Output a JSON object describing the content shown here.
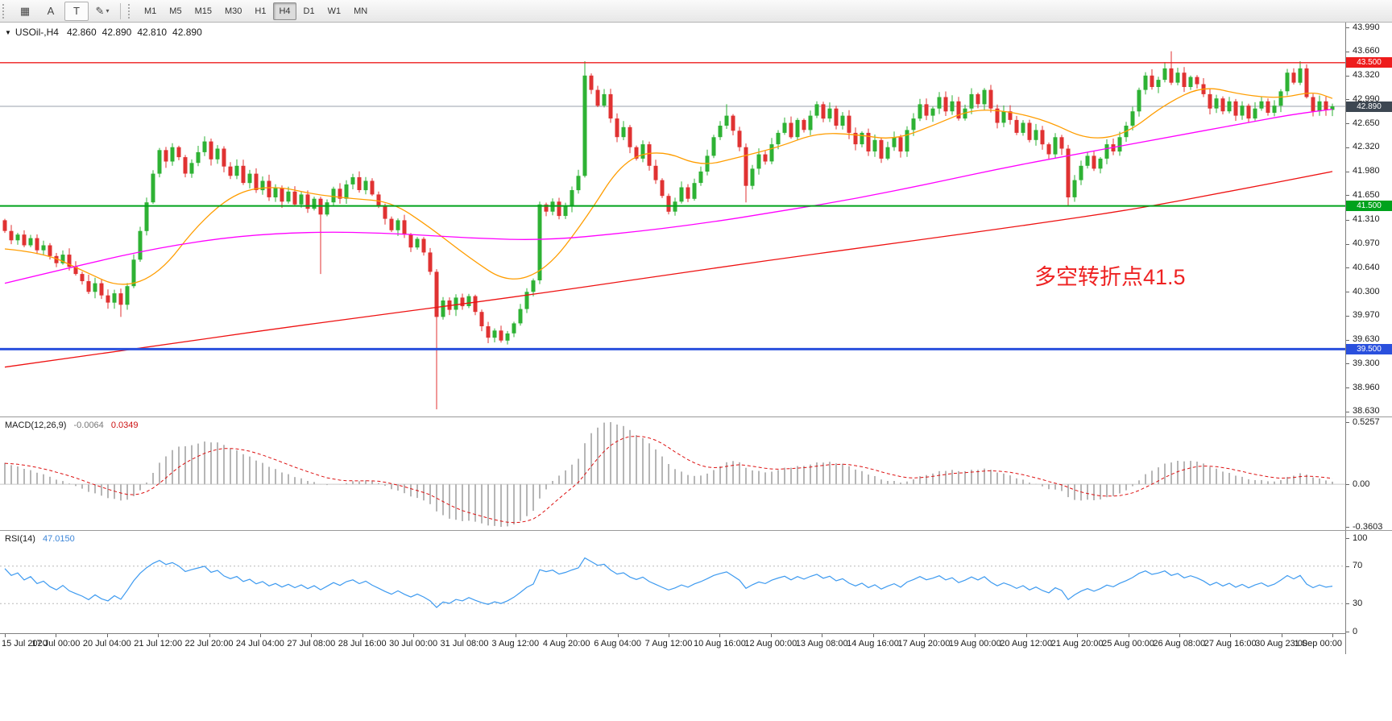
{
  "toolbar": {
    "tools": [
      {
        "id": "grid",
        "glyph": "▦"
      },
      {
        "id": "text-a",
        "glyph": "A"
      },
      {
        "id": "text-t",
        "glyph": "T"
      },
      {
        "id": "draw",
        "glyph": "✎",
        "caret": "▾"
      }
    ],
    "timeframes": [
      "M1",
      "M5",
      "M15",
      "M30",
      "H1",
      "H4",
      "D1",
      "W1",
      "MN"
    ],
    "active_timeframe": "H4"
  },
  "chart_header": {
    "caret": "▼",
    "symbol_period": "USOil-,H4",
    "open": "42.860",
    "high": "42.890",
    "low": "42.810",
    "close": "42.890"
  },
  "annotation": {
    "text": "多空转折点41.5",
    "color": "#ee2222"
  },
  "price_axis": {
    "labels": [
      "43.990",
      "43.660",
      "43.320",
      "42.990",
      "42.650",
      "42.320",
      "41.980",
      "41.650",
      "41.310",
      "40.970",
      "40.640",
      "40.300",
      "39.970",
      "39.630",
      "39.300",
      "38.960",
      "38.630"
    ]
  },
  "levels": [
    {
      "price": 43.5,
      "label": "43.500",
      "color": "#ee1c1c",
      "thickness": 1.4
    },
    {
      "price": 41.5,
      "label": "41.500",
      "color": "#00a21c",
      "thickness": 2
    },
    {
      "price": 39.5,
      "label": "39.500",
      "color": "#2a50dd",
      "thickness": 3
    }
  ],
  "current_price": {
    "value": 42.89,
    "label": "42.890",
    "line_color": "#98a2ab",
    "tag_color": "#3d4752"
  },
  "chart_data": {
    "type": "candlestick",
    "symbol": "USOil-",
    "period": "H4",
    "colors": {
      "up": "#2eb234",
      "down": "#e03232"
    },
    "first_open": 41.3,
    "closes": [
      41.15,
      41.02,
      41.1,
      40.95,
      41.05,
      40.88,
      40.95,
      40.8,
      40.7,
      40.82,
      40.65,
      40.55,
      40.45,
      40.3,
      40.42,
      40.25,
      40.15,
      40.28,
      40.12,
      40.38,
      40.75,
      41.15,
      41.55,
      41.95,
      42.28,
      42.12,
      42.32,
      42.18,
      41.95,
      42.1,
      42.25,
      42.4,
      42.15,
      42.3,
      42.05,
      41.92,
      42.06,
      41.82,
      41.95,
      41.72,
      41.85,
      41.62,
      41.75,
      41.56,
      41.7,
      41.52,
      41.66,
      41.46,
      41.6,
      41.38,
      41.55,
      41.74,
      41.6,
      41.8,
      41.9,
      41.72,
      41.85,
      41.66,
      41.5,
      41.32,
      41.16,
      41.3,
      41.1,
      40.92,
      41.04,
      40.85,
      40.58,
      39.95,
      40.18,
      40.05,
      40.22,
      40.1,
      40.24,
      40.02,
      39.82,
      39.66,
      39.76,
      39.62,
      39.72,
      39.86,
      40.06,
      40.3,
      40.46,
      41.52,
      41.42,
      41.56,
      41.36,
      41.5,
      41.72,
      41.92,
      43.32,
      43.12,
      42.9,
      43.06,
      42.72,
      42.46,
      42.6,
      42.32,
      42.16,
      42.36,
      42.06,
      41.86,
      41.64,
      41.42,
      41.56,
      41.76,
      41.6,
      41.82,
      41.98,
      42.2,
      42.46,
      42.62,
      42.76,
      42.55,
      42.32,
      41.78,
      42.02,
      42.22,
      42.12,
      42.36,
      42.52,
      42.66,
      42.46,
      42.7,
      42.56,
      42.76,
      42.92,
      42.72,
      42.86,
      42.62,
      42.76,
      42.52,
      42.36,
      42.52,
      42.26,
      42.42,
      42.16,
      42.32,
      42.46,
      42.26,
      42.56,
      42.72,
      42.92,
      42.76,
      42.86,
      43.02,
      42.82,
      42.96,
      42.72,
      42.86,
      43.06,
      42.92,
      43.12,
      42.86,
      42.66,
      42.82,
      42.7,
      42.52,
      42.66,
      42.42,
      42.56,
      42.36,
      42.22,
      42.46,
      42.3,
      41.62,
      41.86,
      42.06,
      42.2,
      42.02,
      42.16,
      42.36,
      42.26,
      42.46,
      42.62,
      42.82,
      43.12,
      43.32,
      43.16,
      43.26,
      43.42,
      43.22,
      43.36,
      43.16,
      43.3,
      43.2,
      43.06,
      42.86,
      43.0,
      42.82,
      42.96,
      42.76,
      42.9,
      42.72,
      42.86,
      42.96,
      42.8,
      42.9,
      43.1,
      43.36,
      43.22,
      43.42,
      43.02,
      42.82,
      42.96,
      42.84,
      42.89
    ],
    "pre_closes": [
      40.2,
      40.28,
      40.35,
      40.3,
      40.42,
      40.5,
      40.46,
      40.58,
      40.66,
      40.6,
      40.72,
      40.8,
      40.76,
      40.88,
      40.95,
      40.9,
      41.0,
      41.06,
      41.0,
      41.1,
      41.16,
      41.1,
      41.2,
      41.26,
      41.2,
      41.3
    ],
    "spikes": {
      "18": {
        "low": 39.95
      },
      "49": {
        "low": 40.55
      },
      "67": {
        "low": 38.66
      },
      "90": {
        "high": 43.52
      },
      "112": {
        "high": 42.92
      },
      "115": {
        "low": 41.55
      },
      "165": {
        "low": 41.5
      },
      "181": {
        "high": 43.66
      },
      "201": {
        "high": 43.52
      }
    },
    "ma_lines": [
      {
        "name": "ma-fast-line",
        "color": "#ff9d00",
        "points": [
          [
            0,
            40.9
          ],
          [
            6,
            40.85
          ],
          [
            12,
            40.6
          ],
          [
            18,
            40.35
          ],
          [
            24,
            40.55
          ],
          [
            30,
            41.25
          ],
          [
            36,
            41.7
          ],
          [
            42,
            41.78
          ],
          [
            48,
            41.66
          ],
          [
            54,
            41.6
          ],
          [
            60,
            41.56
          ],
          [
            66,
            41.2
          ],
          [
            72,
            40.78
          ],
          [
            78,
            40.42
          ],
          [
            84,
            40.6
          ],
          [
            90,
            41.3
          ],
          [
            96,
            42.15
          ],
          [
            102,
            42.28
          ],
          [
            108,
            42.05
          ],
          [
            114,
            42.18
          ],
          [
            120,
            42.32
          ],
          [
            126,
            42.52
          ],
          [
            132,
            42.5
          ],
          [
            138,
            42.42
          ],
          [
            144,
            42.62
          ],
          [
            150,
            42.85
          ],
          [
            156,
            42.82
          ],
          [
            162,
            42.68
          ],
          [
            168,
            42.42
          ],
          [
            174,
            42.5
          ],
          [
            180,
            42.92
          ],
          [
            186,
            43.18
          ],
          [
            192,
            43.05
          ],
          [
            198,
            43.0
          ],
          [
            203,
            43.1
          ],
          [
            206,
            43.0
          ]
        ]
      },
      {
        "name": "ma-mid-line",
        "color": "#ff00ff",
        "points": [
          [
            0,
            40.42
          ],
          [
            12,
            40.68
          ],
          [
            24,
            40.92
          ],
          [
            36,
            41.08
          ],
          [
            48,
            41.14
          ],
          [
            60,
            41.12
          ],
          [
            72,
            41.05
          ],
          [
            84,
            41.02
          ],
          [
            96,
            41.12
          ],
          [
            108,
            41.25
          ],
          [
            120,
            41.42
          ],
          [
            132,
            41.6
          ],
          [
            144,
            41.82
          ],
          [
            156,
            42.05
          ],
          [
            168,
            42.25
          ],
          [
            180,
            42.45
          ],
          [
            192,
            42.65
          ],
          [
            200,
            42.78
          ],
          [
            206,
            42.85
          ]
        ]
      },
      {
        "name": "ma-slow-line",
        "color": "#ee1111",
        "points": [
          [
            0,
            39.25
          ],
          [
            20,
            39.5
          ],
          [
            40,
            39.76
          ],
          [
            60,
            40.0
          ],
          [
            80,
            40.24
          ],
          [
            100,
            40.5
          ],
          [
            120,
            40.76
          ],
          [
            140,
            41.0
          ],
          [
            160,
            41.25
          ],
          [
            175,
            41.45
          ],
          [
            190,
            41.7
          ],
          [
            206,
            41.98
          ]
        ]
      }
    ]
  },
  "macd": {
    "title": "MACD(12,26,9)",
    "value_main": "-0.0064",
    "value_signal": "0.0349",
    "axis": [
      {
        "text": "0.5257",
        "v": 0.5257
      },
      {
        "text": "0.00",
        "v": 0
      },
      {
        "text": "-0.3603",
        "v": -0.3603
      }
    ],
    "max": 0.5257,
    "min": -0.3603,
    "histogram_color": "#b6b6b6",
    "signal_color": "#dd1111"
  },
  "rsi": {
    "title": "RSI(14)",
    "value": "47.0150",
    "color": "#3d9af0",
    "axis": [
      {
        "text": "100",
        "v": 100
      },
      {
        "text": "70",
        "v": 70
      },
      {
        "text": "30",
        "v": 30
      },
      {
        "text": "0",
        "v": 0
      }
    ],
    "levels": [
      70,
      30
    ]
  },
  "time_axis": {
    "labels": [
      "15 Jul 2020",
      "17 Jul 00:00",
      "20 Jul 04:00",
      "21 Jul 12:00",
      "22 Jul 20:00",
      "24 Jul 04:00",
      "27 Jul 08:00",
      "28 Jul 16:00",
      "30 Jul 00:00",
      "31 Jul 08:00",
      "3 Aug 12:00",
      "4 Aug 20:00",
      "6 Aug 04:00",
      "7 Aug 12:00",
      "10 Aug 16:00",
      "12 Aug 00:00",
      "13 Aug 08:00",
      "14 Aug 16:00",
      "17 Aug 20:00",
      "19 Aug 00:00",
      "20 Aug 12:00",
      "21 Aug 20:00",
      "25 Aug 00:00",
      "26 Aug 08:00",
      "27 Aug 16:00",
      "30 Aug 23:00",
      "1 Sep 00:00"
    ]
  }
}
